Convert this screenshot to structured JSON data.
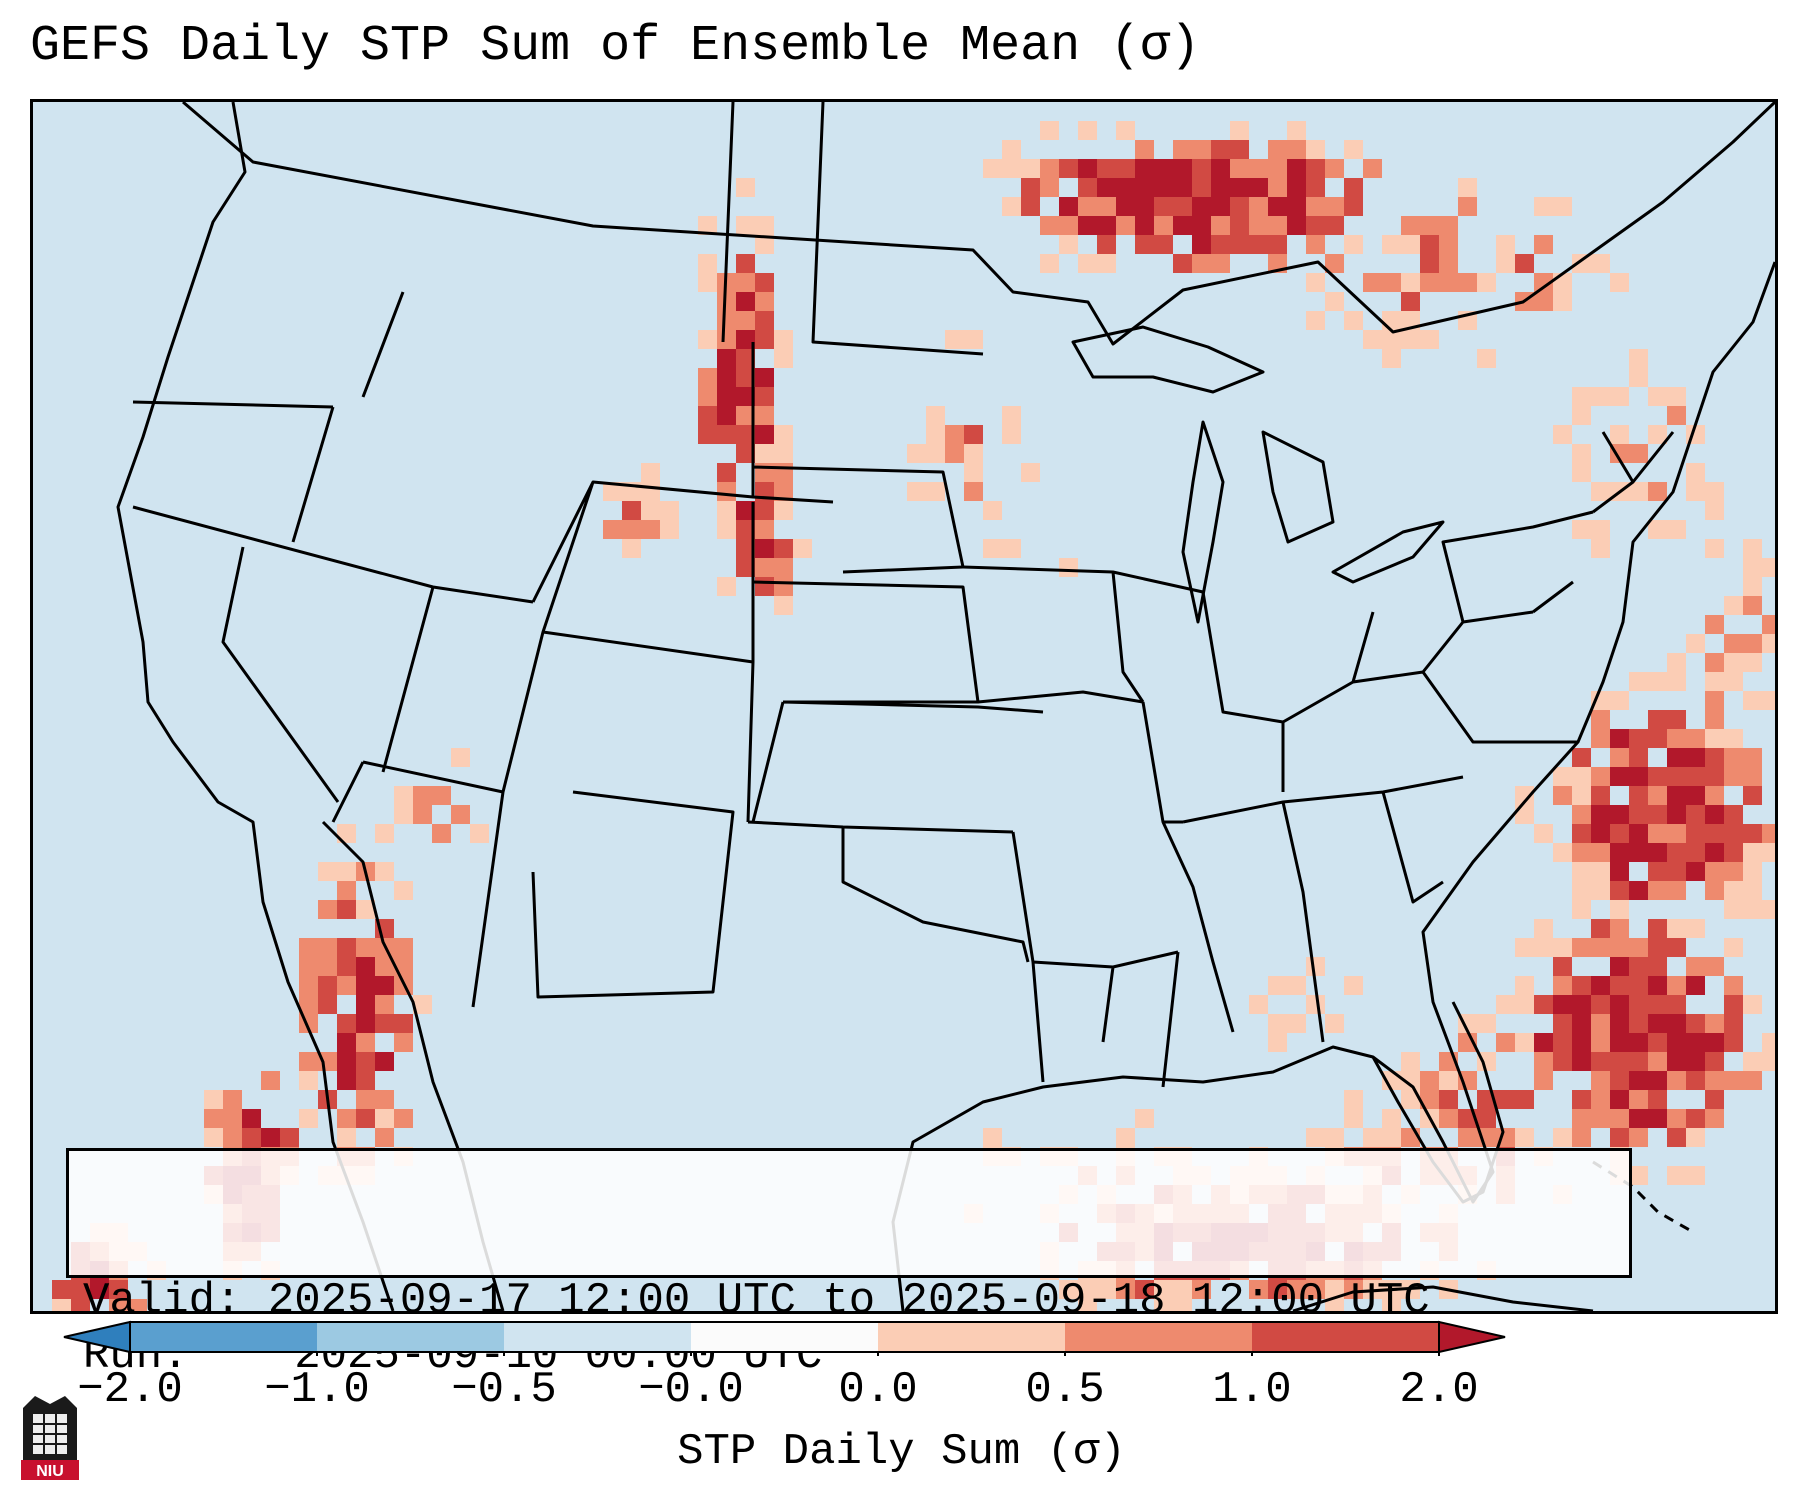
{
  "title": "GEFS Daily STP Sum of Ensemble Mean (σ)",
  "info": {
    "valid_label": "Valid:",
    "valid_value": "2025-09-17 12:00 UTC to 2025-09-18 12:00 UTC",
    "run_label": "Run:",
    "run_value": "2025-09-10 00:00 UTC"
  },
  "colorbar": {
    "label": "STP Daily Sum (σ)",
    "ticks": [
      "−2.0",
      "−1.0",
      "−0.5",
      "−0.0",
      "0.0",
      "0.5",
      "1.0",
      "2.0"
    ],
    "colors": [
      "#2f7fbd",
      "#5a9fcf",
      "#9cc9e2",
      "#d0e4f0",
      "#fbfbfb",
      "#fbcdb5",
      "#ee8a6e",
      "#d14a43",
      "#b2182b"
    ]
  },
  "logo": {
    "text": "NIU"
  }
}
